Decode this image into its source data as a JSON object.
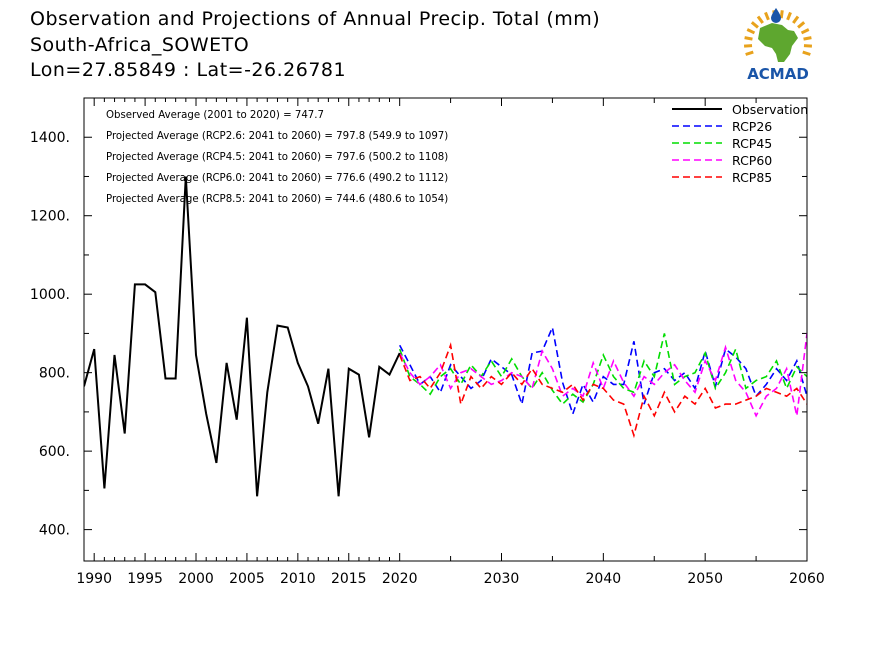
{
  "header": {
    "title": "Observation and Projections of Annual Precip. Total (mm)",
    "location": "South-Africa_SOWETO",
    "coords": "Lon=27.85849 : Lat=-26.26781"
  },
  "logo": {
    "text": "ACMAD",
    "icon": "africa-drop-logo",
    "color_text": "#1a55a8",
    "color_map": "#5ea72f",
    "color_sun": "#e8a21c"
  },
  "chart_data": {
    "type": "line",
    "xlim": [
      1989,
      2060
    ],
    "ylim": [
      320,
      1500
    ],
    "x_ticks": [
      1990,
      1995,
      2000,
      2005,
      2010,
      2015,
      2020,
      2030,
      2040,
      2050,
      2060
    ],
    "y_ticks": [
      400,
      600,
      800,
      1000,
      1200,
      1400
    ],
    "y_tick_labels": [
      "400.",
      "600.",
      "800.",
      "1000.",
      "1200.",
      "1400."
    ],
    "annotations": [
      "Observed Average (2001 to 2020) = 747.7",
      "Projected Average (RCP2.6: 2041 to 2060) = 797.8 (549.9 to 1097)",
      "Projected Average (RCP4.5: 2041 to 2060) = 797.6 (500.2 to 1108)",
      "Projected Average (RCP6.0: 2041 to 2060) = 776.6 (490.2 to 1112)",
      "Projected Average (RCP8.5: 2041 to 2060) = 744.6 (480.6 to 1054)"
    ],
    "legend_position": "top-right",
    "series": [
      {
        "name": "Observation",
        "color": "#000000",
        "dash": "solid",
        "x": [
          1989,
          1990,
          1991,
          1992,
          1993,
          1994,
          1995,
          1996,
          1997,
          1998,
          1999,
          2000,
          2001,
          2002,
          2003,
          2004,
          2005,
          2006,
          2007,
          2008,
          2009,
          2010,
          2011,
          2012,
          2013,
          2014,
          2015,
          2016,
          2017,
          2018,
          2019,
          2020
        ],
        "values": [
          765,
          860,
          505,
          845,
          645,
          1025,
          1025,
          1005,
          785,
          785,
          1300,
          845,
          695,
          570,
          825,
          680,
          940,
          485,
          750,
          920,
          915,
          825,
          765,
          670,
          810,
          485,
          810,
          795,
          635,
          815,
          795,
          850
        ]
      },
      {
        "name": "RCP26",
        "color": "#0000ff",
        "dash": "dashed",
        "x": [
          2020,
          2021,
          2022,
          2023,
          2024,
          2025,
          2026,
          2027,
          2028,
          2029,
          2030,
          2031,
          2032,
          2033,
          2034,
          2035,
          2036,
          2037,
          2038,
          2039,
          2040,
          2041,
          2042,
          2043,
          2044,
          2045,
          2046,
          2047,
          2048,
          2049,
          2050,
          2051,
          2052,
          2053,
          2054,
          2055,
          2056,
          2057,
          2058,
          2059,
          2060
        ],
        "values": [
          870,
          820,
          770,
          790,
          750,
          820,
          790,
          760,
          780,
          835,
          815,
          795,
          720,
          850,
          855,
          915,
          775,
          695,
          770,
          725,
          790,
          770,
          770,
          880,
          720,
          800,
          810,
          780,
          800,
          760,
          855,
          765,
          860,
          840,
          810,
          740,
          770,
          810,
          780,
          830,
          740
        ]
      },
      {
        "name": "RCP45",
        "color": "#00dd00",
        "dash": "dashed",
        "x": [
          2020,
          2021,
          2022,
          2023,
          2024,
          2025,
          2026,
          2027,
          2028,
          2029,
          2030,
          2031,
          2032,
          2033,
          2034,
          2035,
          2036,
          2037,
          2038,
          2039,
          2040,
          2041,
          2042,
          2043,
          2044,
          2045,
          2046,
          2047,
          2048,
          2049,
          2050,
          2051,
          2052,
          2053,
          2054,
          2055,
          2056,
          2057,
          2058,
          2059,
          2060
        ],
        "values": [
          860,
          790,
          770,
          745,
          790,
          810,
          770,
          820,
          790,
          830,
          790,
          835,
          790,
          760,
          800,
          755,
          720,
          745,
          725,
          770,
          845,
          790,
          760,
          750,
          830,
          790,
          900,
          770,
          790,
          800,
          850,
          760,
          800,
          860,
          760,
          780,
          790,
          830,
          760,
          815,
          790
        ]
      },
      {
        "name": "RCP60",
        "color": "#ff00ff",
        "dash": "dashed",
        "x": [
          2020,
          2021,
          2022,
          2023,
          2024,
          2025,
          2026,
          2027,
          2028,
          2029,
          2030,
          2031,
          2032,
          2033,
          2034,
          2035,
          2036,
          2037,
          2038,
          2039,
          2040,
          2041,
          2042,
          2043,
          2044,
          2045,
          2046,
          2047,
          2048,
          2049,
          2050,
          2051,
          2052,
          2053,
          2054,
          2055,
          2056,
          2057,
          2058,
          2059,
          2060
        ],
        "values": [
          850,
          800,
          770,
          790,
          820,
          760,
          800,
          810,
          790,
          770,
          780,
          800,
          790,
          760,
          855,
          810,
          740,
          760,
          740,
          825,
          760,
          830,
          775,
          740,
          790,
          770,
          800,
          820,
          780,
          750,
          830,
          780,
          865,
          780,
          750,
          690,
          740,
          760,
          810,
          690,
          900
        ]
      },
      {
        "name": "RCP85",
        "color": "#ff0000",
        "dash": "dashed",
        "x": [
          2020,
          2021,
          2022,
          2023,
          2024,
          2025,
          2026,
          2027,
          2028,
          2029,
          2030,
          2031,
          2032,
          2033,
          2034,
          2035,
          2036,
          2037,
          2038,
          2039,
          2040,
          2041,
          2042,
          2043,
          2044,
          2045,
          2046,
          2047,
          2048,
          2049,
          2050,
          2051,
          2052,
          2053,
          2054,
          2055,
          2056,
          2057,
          2058,
          2059,
          2060
        ],
        "values": [
          845,
          780,
          790,
          760,
          800,
          870,
          720,
          790,
          760,
          790,
          770,
          800,
          770,
          810,
          770,
          760,
          750,
          770,
          730,
          770,
          760,
          730,
          720,
          640,
          740,
          690,
          750,
          700,
          740,
          720,
          760,
          710,
          720,
          720,
          730,
          740,
          760,
          750,
          740,
          760,
          720
        ]
      }
    ]
  }
}
